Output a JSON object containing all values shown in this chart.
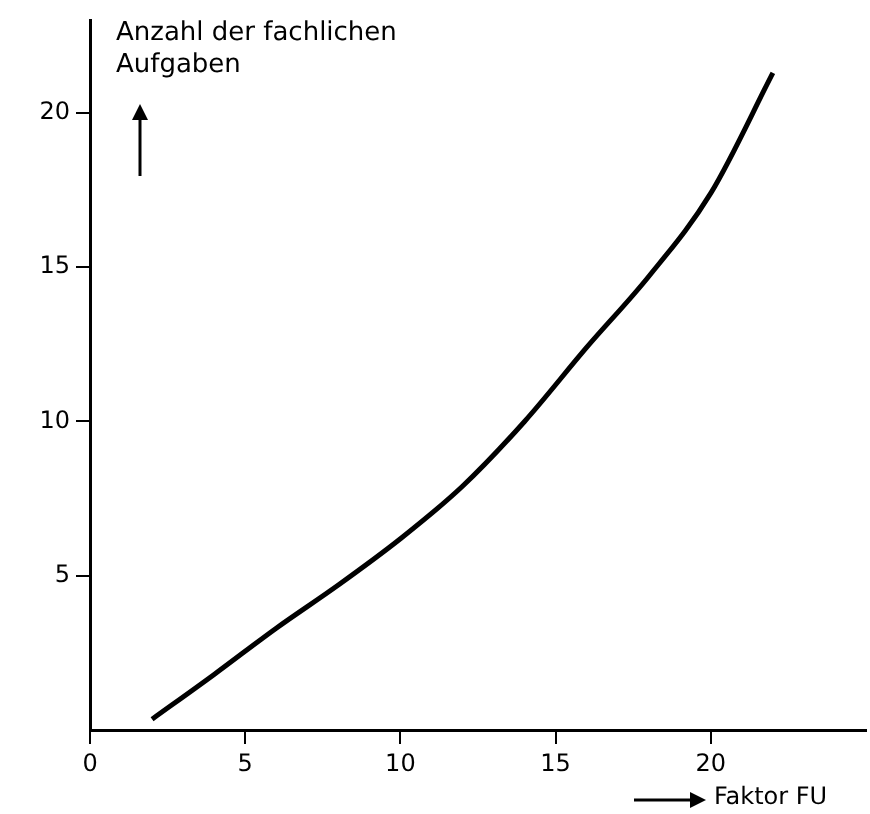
{
  "chart_data": {
    "type": "line",
    "xlabel": "Faktor FU",
    "ylabel": "Anzahl der fachlichen Aufgaben",
    "xlim": [
      0,
      25
    ],
    "xticks": [
      0,
      5,
      10,
      15,
      20
    ],
    "ylim": [
      0,
      23
    ],
    "yticks": [
      5,
      10,
      15,
      20
    ],
    "grid": false,
    "legend": false,
    "marker": "none",
    "line_style": "solid",
    "series": [
      {
        "color": "#000000",
        "x": [
          2,
          4,
          6,
          8,
          10,
          12,
          14,
          16,
          18,
          20,
          22
        ],
        "values": [
          0.35,
          1.8,
          3.3,
          4.7,
          6.2,
          7.9,
          10,
          12.4,
          14.7,
          17.4,
          21.3
        ]
      }
    ]
  }
}
